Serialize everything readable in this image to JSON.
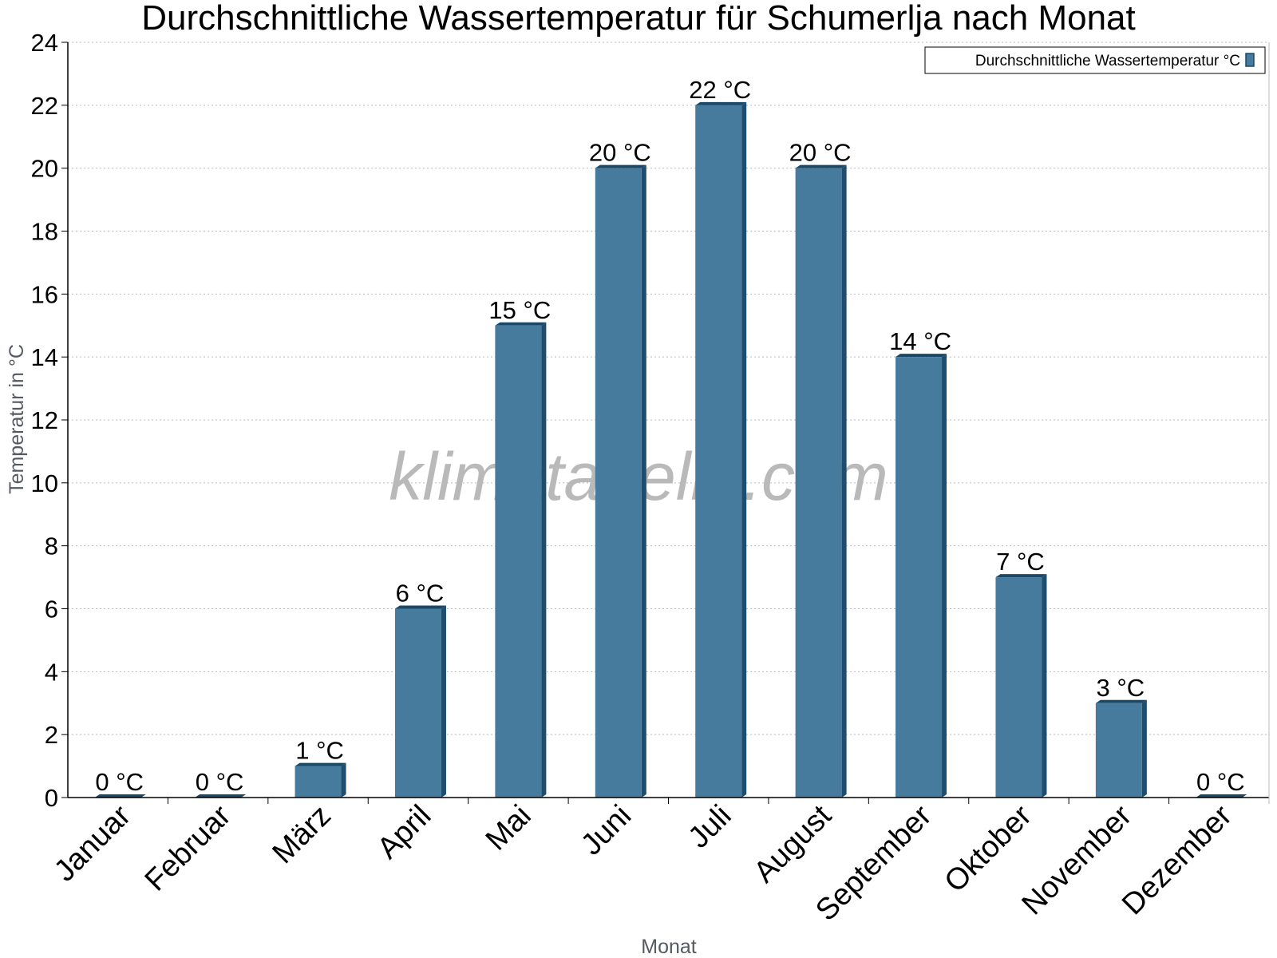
{
  "chart_data": {
    "type": "bar",
    "title": "Durchschnittliche Wassertemperatur für Schumerlja nach Monat",
    "xlabel": "Monat",
    "ylabel": "Temperatur in °C",
    "categories": [
      "Januar",
      "Februar",
      "März",
      "April",
      "Mai",
      "Juni",
      "Juli",
      "August",
      "September",
      "Oktober",
      "November",
      "Dezember"
    ],
    "series": [
      {
        "name": "Durchschnittliche Wassertemperatur °C",
        "values": [
          0,
          0,
          1,
          6,
          15,
          20,
          22,
          20,
          14,
          7,
          3,
          0
        ],
        "labels": [
          "0 °C",
          "0 °C",
          "1 °C",
          "6 °C",
          "15 °C",
          "20 °C",
          "22 °C",
          "20 °C",
          "14 °C",
          "7 °C",
          "3 °C",
          "0 °C"
        ]
      }
    ],
    "ylim": [
      0,
      24
    ],
    "yticks": [
      0,
      2,
      4,
      6,
      8,
      10,
      12,
      14,
      16,
      18,
      20,
      22,
      24
    ],
    "grid": true,
    "legend_position": "top-right",
    "colors": {
      "bar": "#467b9e",
      "bar_side": "#1f4d6e",
      "bar_top": "#1a4866",
      "grid": "#bbbbbb"
    },
    "watermark": "klimatabelle.com"
  }
}
